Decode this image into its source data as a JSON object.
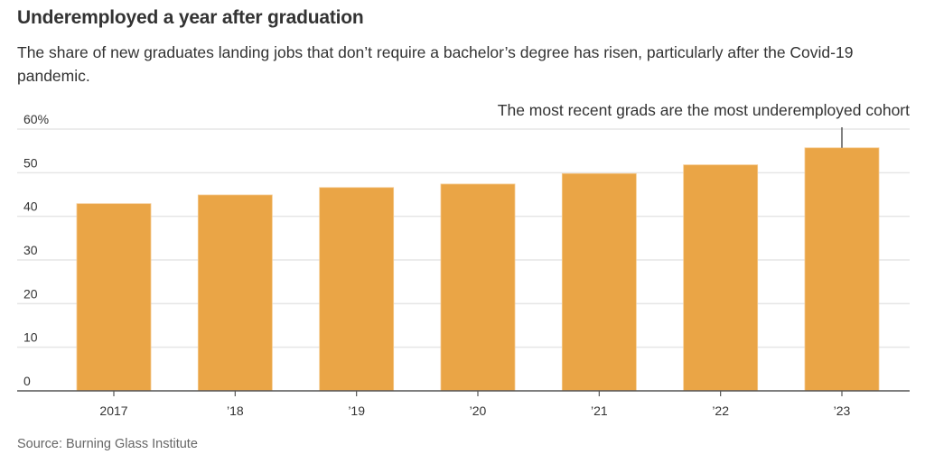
{
  "title": "Underemployed a year after graduation",
  "subtitle": "The share of new graduates landing jobs that don’t require a bachelor’s degree has risen, particularly after the Covid-19 pandemic.",
  "annotation": "The most recent grads are the most underemployed cohort",
  "source": "Source: Burning Glass Institute",
  "colors": {
    "bar": "#EAA546",
    "grid": "#e6e6e6",
    "axis": "#555555",
    "annotation_line": "#555555"
  },
  "chart_data": {
    "type": "bar",
    "title": "Underemployed a year after graduation",
    "subtitle": "The share of new graduates landing jobs that don’t require a bachelor’s degree has risen, particularly after the Covid-19 pandemic.",
    "categories": [
      "2017",
      "’18",
      "’19",
      "’20",
      "’21",
      "’22",
      "’23"
    ],
    "values": [
      42.9,
      44.9,
      46.6,
      47.4,
      49.8,
      51.8,
      55.7
    ],
    "xlabel": "",
    "ylabel": "",
    "ylim": [
      0,
      60
    ],
    "yticks": [
      0,
      10,
      20,
      30,
      40,
      50,
      60
    ],
    "ytick_labels": [
      "0",
      "10",
      "20",
      "30",
      "40",
      "50",
      "60%"
    ],
    "grid": true,
    "legend": null,
    "annotations": [
      {
        "text": "The most recent grads are the most underemployed cohort",
        "target": "’23"
      }
    ],
    "source": "Source: Burning Glass Institute"
  }
}
